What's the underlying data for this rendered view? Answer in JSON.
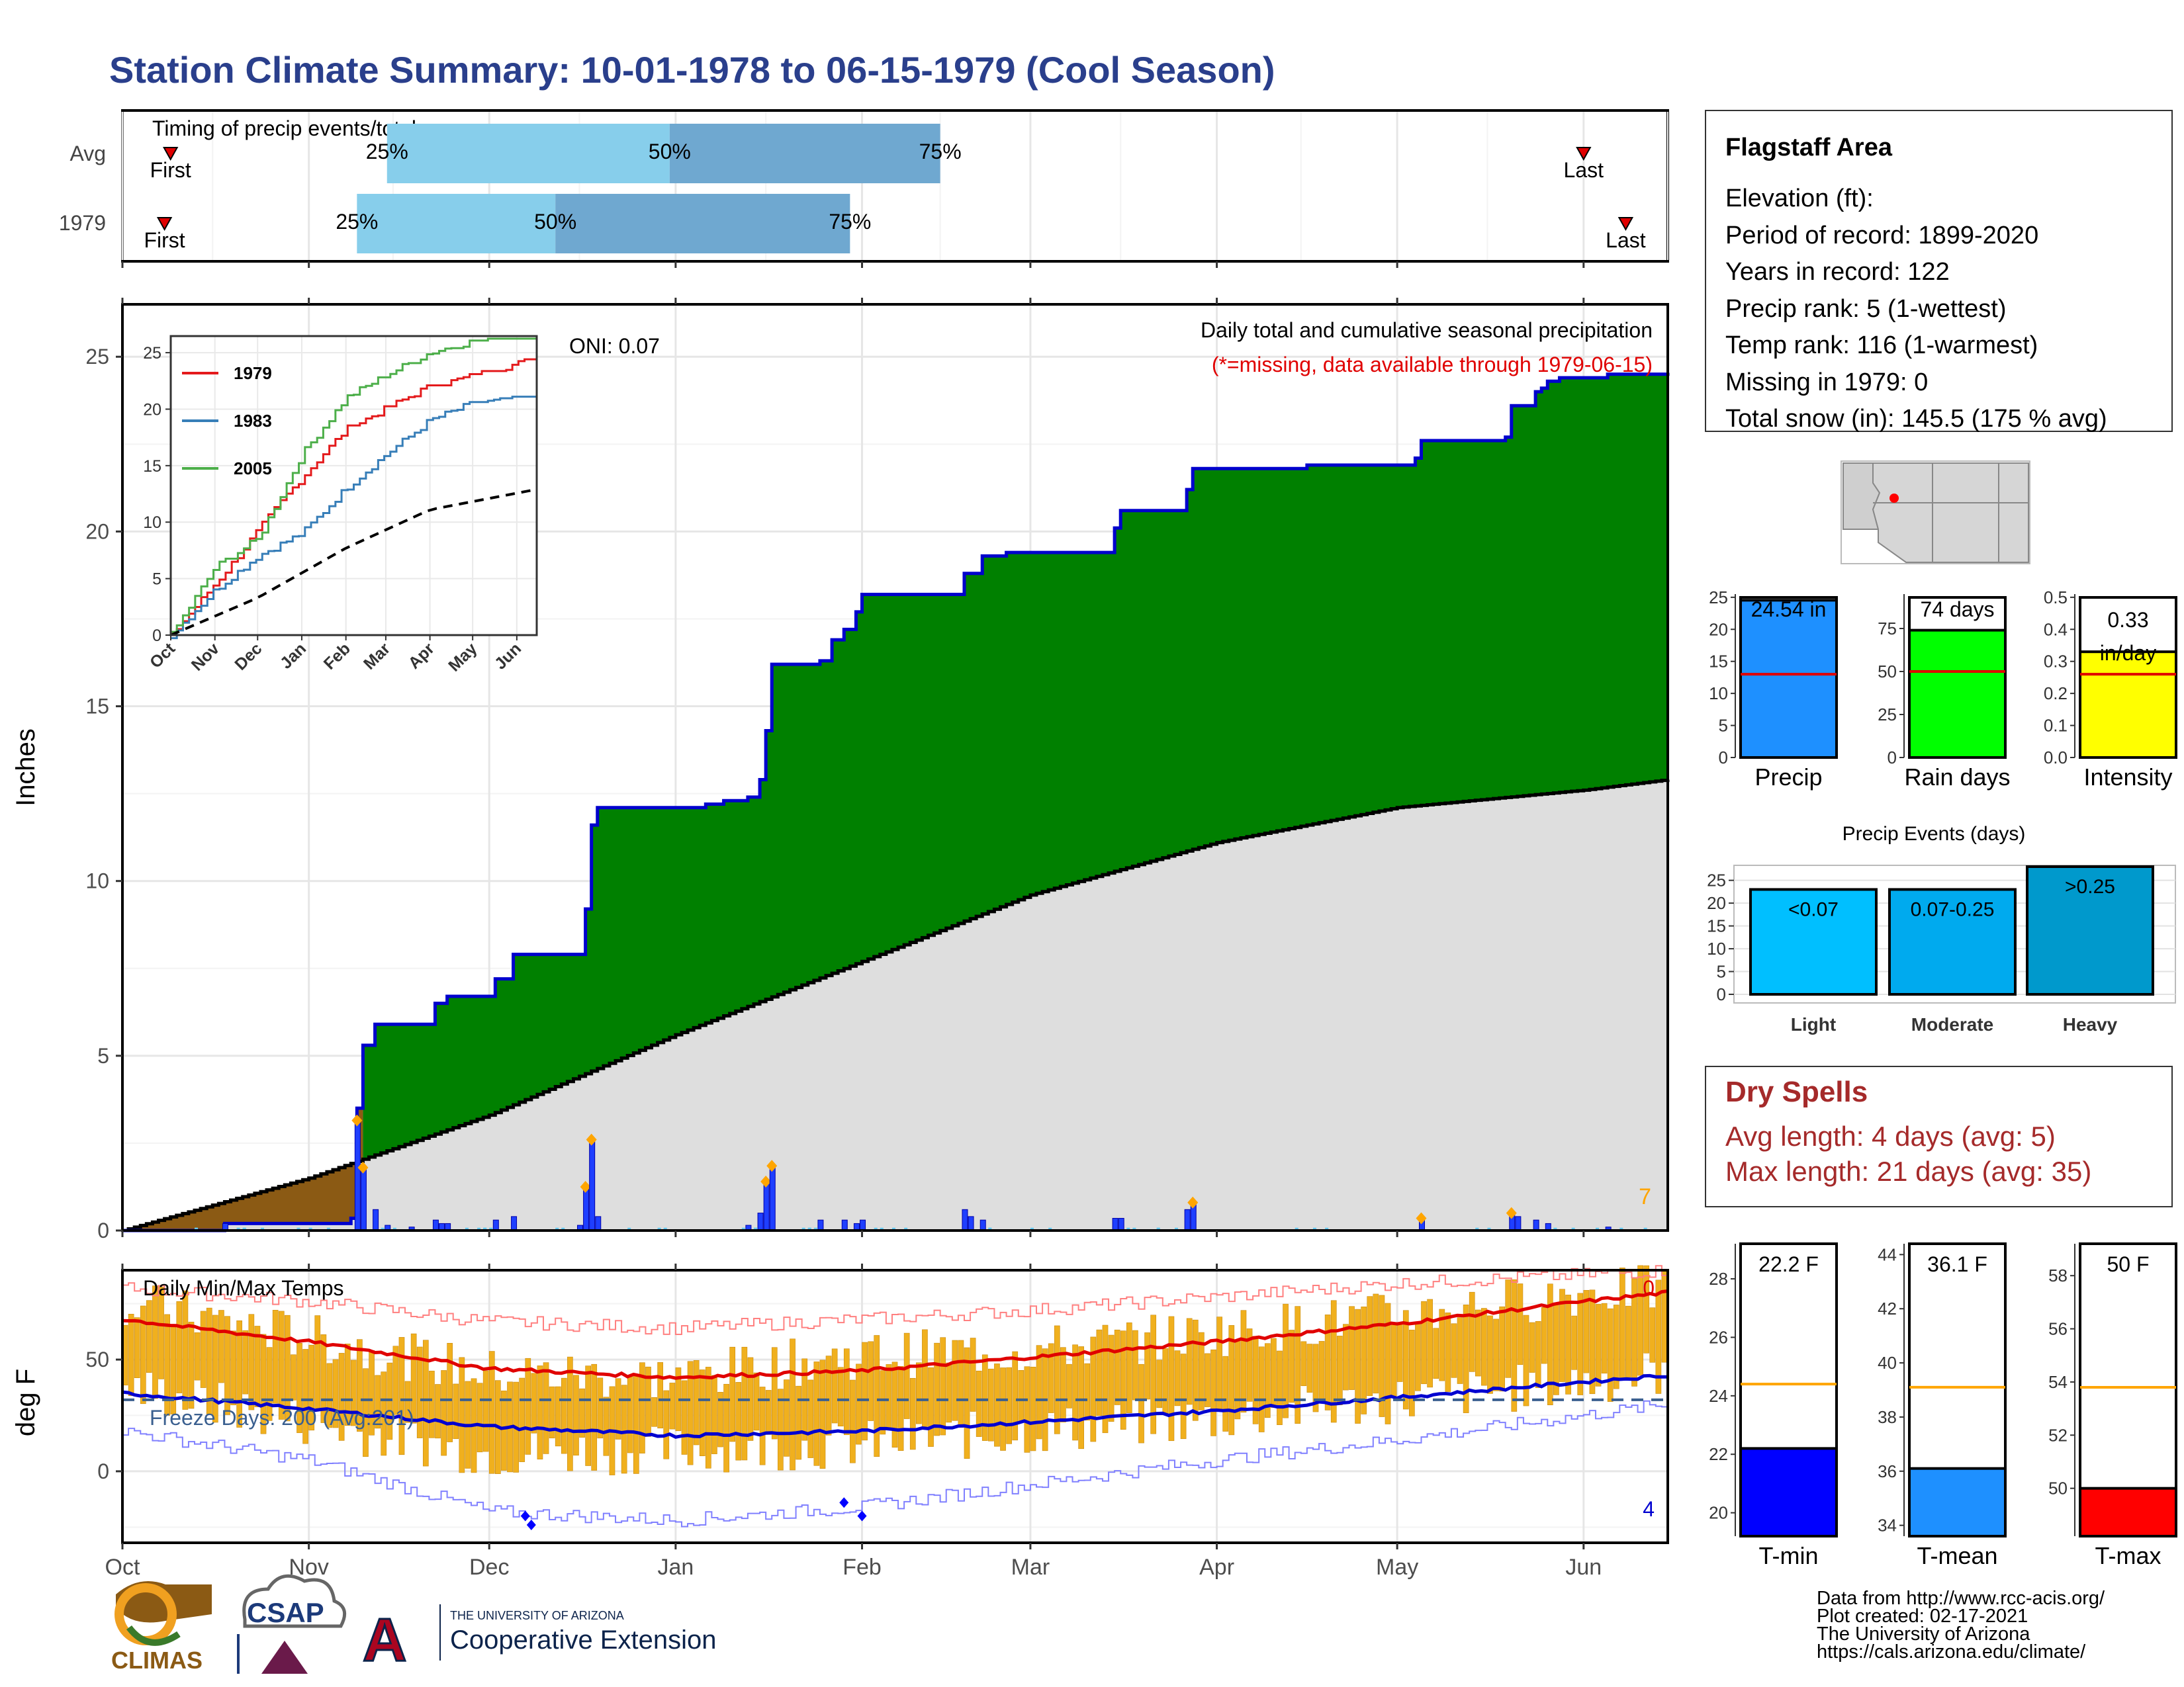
{
  "title": "Station Climate Summary: 10-01-1978 to 06-15-1979 (Cool Season)",
  "colors": {
    "title": "#2a3f8c",
    "green": "#008000",
    "cum_line": "#0000cd",
    "normal_fill": "#dedede",
    "brown": "#8b5a14",
    "bar": "#1f3fff",
    "bar_light": "#64c8f0",
    "marker": "#ffa500",
    "temp_bar": "#f0b01e",
    "tmax_line": "#e00000",
    "tmin_line": "#0000d0",
    "freeze_line": "#3a5f8f",
    "red_text": "#e00000",
    "dry_text": "#a52a2a",
    "precip_bar": "#1e90ff",
    "raindays_bar": "#00ff00",
    "intensity_bar": "#ffff00",
    "light_bar": "#00bfff",
    "moderate_bar": "#00aaee",
    "heavy_bar": "#0099cc",
    "tmin_bar": "#0000ff",
    "tmean_bar": "#1e90ff",
    "tmax_bar": "#ff0000",
    "avg_line_orange": "#ffa500",
    "pct_light": "#87ceeb",
    "pct_dark": "#6fa8d0"
  },
  "timing": {
    "label": "Timing of precip events/totals",
    "rows": [
      {
        "name": "Avg",
        "first_label": "First",
        "last_label": "Last",
        "first_date": "1978-10-09",
        "p25": "1978-11-14",
        "p50": "1978-12-31",
        "p75": "1979-02-14",
        "last_date": "1979-06-01",
        "p25_label": "25%",
        "p50_label": "50%",
        "p75_label": "75%"
      },
      {
        "name": "1979",
        "first_label": "First",
        "last_label": "Last",
        "first_date": "1978-10-08",
        "p25": "1978-11-09",
        "p50": "1978-12-12",
        "p75": "1979-01-30",
        "last_date": "1979-06-08",
        "p25_label": "25%",
        "p50_label": "50%",
        "p75_label": "75%"
      }
    ]
  },
  "precip_panel": {
    "ylabel": "Inches",
    "title_right": "Daily total and cumulative seasonal precipitation",
    "missing_note": "(*=missing, data available through 1979-06-15)",
    "oni": "ONI: 0.07",
    "corner_count": "7",
    "month_ticks": [
      "Oct",
      "Nov",
      "Dec",
      "Jan",
      "Feb",
      "Mar",
      "Apr",
      "May",
      "Jun"
    ]
  },
  "inset": {
    "legend": [
      "1979",
      "1983",
      "2005"
    ],
    "month_ticks": [
      "Oct",
      "Nov",
      "Dec",
      "Jan",
      "Feb",
      "Mar",
      "Apr",
      "May",
      "Jun"
    ]
  },
  "temp_panel": {
    "ylabel": "deg F",
    "title": "Daily Min/Max Temps",
    "freeze": "Freeze Days: 200 (Avg:201)",
    "count_top": "0",
    "count_bottom": "4"
  },
  "x_axis_months": [
    "Oct",
    "Nov",
    "Dec",
    "Jan",
    "Feb",
    "Mar",
    "Apr",
    "May",
    "Jun"
  ],
  "station": {
    "name": "Flagstaff Area",
    "lines": [
      "Elevation (ft):",
      "Period of record: 1899-2020",
      "Years in record: 122",
      "Precip rank: 5 (1-wettest)",
      "Temp rank: 116 (1-warmest)",
      "Missing in 1979: 0",
      "Total snow (in): 145.5 (175 % avg)"
    ]
  },
  "summary_bars": [
    {
      "key": "precip",
      "label": "Precip",
      "value_label": "24.54 in",
      "value": 24.54,
      "avg": 13.0,
      "ymax": 25.5,
      "ticks": [
        0,
        5,
        10,
        15,
        20,
        25
      ],
      "tick_fmt": "int"
    },
    {
      "key": "raindays",
      "label": "Rain days",
      "value_label": "74 days",
      "value": 74,
      "avg": 50,
      "ymax": 95,
      "ticks": [
        0,
        25,
        50,
        75
      ],
      "tick_fmt": "int"
    },
    {
      "key": "intensity",
      "label": "Intensity",
      "value_label": "0.33 in/day",
      "value": 0.33,
      "avg": 0.26,
      "ymax": 0.51,
      "ticks": [
        0.0,
        0.1,
        0.2,
        0.3,
        0.4,
        0.5
      ],
      "tick_fmt": "dec1"
    }
  ],
  "precip_events": {
    "title": "Precip Events (days)",
    "bars": [
      {
        "label": "Light",
        "value_label": "<0.07",
        "value": 23
      },
      {
        "label": "Moderate",
        "value_label": "0.07-0.25",
        "value": 23
      },
      {
        "label": "Heavy",
        "value_label": ">0.25",
        "value": 28
      }
    ],
    "ticks": [
      0,
      5,
      10,
      15,
      20,
      25
    ],
    "ymax": 28
  },
  "dry_spells": {
    "title": "Dry Spells",
    "avg_line": "Avg length: 4 days (avg: 5)",
    "max_line": "Max length: 21 days (avg: 35)"
  },
  "temp_bars": [
    {
      "key": "tmin",
      "label": "T-min",
      "value_label": "22.2 F",
      "value": 22.2,
      "avg": 24.4,
      "ymin": 19.2,
      "ymax": 29.2,
      "ticks": [
        20,
        22,
        24,
        26,
        28
      ]
    },
    {
      "key": "tmean",
      "label": "T-mean",
      "value_label": "36.1 F",
      "value": 36.1,
      "avg": 39.1,
      "ymin": 33.6,
      "ymax": 44.4,
      "ticks": [
        34,
        36,
        38,
        40,
        42,
        44
      ]
    },
    {
      "key": "tmax",
      "label": "T-max",
      "value_label": "50 F",
      "value": 50,
      "avg": 53.8,
      "ymin": 48.2,
      "ymax": 59.2,
      "ticks": [
        50,
        52,
        54,
        56,
        58
      ]
    }
  ],
  "credits": [
    "Data from http://www.rcc-acis.org/",
    "Plot created: 02-17-2021",
    "The University of Arizona",
    "https://cals.arizona.edu/climate/"
  ],
  "logos": {
    "climas": "CLIMAS",
    "csap": "CSAP",
    "ua_small": "THE UNIVERSITY OF ARIZONA",
    "ua_big": "Cooperative Extension"
  },
  "chart_data": {
    "type": "area",
    "title": "Daily total and cumulative seasonal precipitation",
    "ylabel": "Inches",
    "ylim": [
      0,
      26.5
    ],
    "x_range": [
      "1978-10-01",
      "1979-06-15"
    ],
    "series": [
      {
        "name": "1979",
        "cumulative": [
          [
            "1978-10-01",
            0
          ],
          [
            "1978-10-17",
            0
          ],
          [
            "1978-10-18",
            0.2
          ],
          [
            "1978-11-08",
            0.35
          ],
          [
            "1978-11-09",
            3.5
          ],
          [
            "1978-11-10",
            5.3
          ],
          [
            "1978-11-12",
            5.9
          ],
          [
            "1978-11-21",
            5.9
          ],
          [
            "1978-11-22",
            6.5
          ],
          [
            "1978-11-24",
            6.7
          ],
          [
            "1978-12-01",
            6.7
          ],
          [
            "1978-12-02",
            7.2
          ],
          [
            "1978-12-05",
            7.9
          ],
          [
            "1978-12-16",
            7.9
          ],
          [
            "1978-12-17",
            9.2
          ],
          [
            "1978-12-18",
            11.6
          ],
          [
            "1978-12-19",
            12.1
          ],
          [
            "1979-01-01",
            12.1
          ],
          [
            "1979-01-06",
            12.2
          ],
          [
            "1979-01-09",
            12.3
          ],
          [
            "1979-01-13",
            12.4
          ],
          [
            "1979-01-15",
            12.9
          ],
          [
            "1979-01-16",
            14.3
          ],
          [
            "1979-01-17",
            16.2
          ],
          [
            "1979-01-25",
            16.3
          ],
          [
            "1979-01-27",
            16.9
          ],
          [
            "1979-01-29",
            17.2
          ],
          [
            "1979-01-31",
            17.7
          ],
          [
            "1979-02-01",
            18.2
          ],
          [
            "1979-02-17",
            18.2
          ],
          [
            "1979-02-18",
            18.8
          ],
          [
            "1979-02-21",
            19.3
          ],
          [
            "1979-02-25",
            19.4
          ],
          [
            "1979-03-12",
            19.4
          ],
          [
            "1979-03-15",
            20.1
          ],
          [
            "1979-03-16",
            20.6
          ],
          [
            "1979-03-27",
            21.2
          ],
          [
            "1979-03-28",
            21.8
          ],
          [
            "1979-04-15",
            21.8
          ],
          [
            "1979-04-16",
            21.9
          ],
          [
            "1979-05-04",
            22.1
          ],
          [
            "1979-05-05",
            22.6
          ],
          [
            "1979-05-19",
            22.7
          ],
          [
            "1979-05-20",
            23.6
          ],
          [
            "1979-05-24",
            24.0
          ],
          [
            "1979-05-25",
            24.1
          ],
          [
            "1979-05-26",
            24.3
          ],
          [
            "1979-05-28",
            24.4
          ],
          [
            "1979-06-04",
            24.4
          ],
          [
            "1979-06-05",
            24.5
          ],
          [
            "1979-06-15",
            24.54
          ]
        ]
      },
      {
        "name": "normal",
        "cumulative": [
          [
            "1978-10-01",
            0
          ],
          [
            "1978-11-01",
            1.5
          ],
          [
            "1978-12-01",
            3.3
          ],
          [
            "1979-01-01",
            5.6
          ],
          [
            "1979-02-01",
            7.7
          ],
          [
            "1979-03-01",
            9.6
          ],
          [
            "1979-04-01",
            11.1
          ],
          [
            "1979-05-01",
            12.1
          ],
          [
            "1979-06-01",
            12.6
          ],
          [
            "1979-06-15",
            12.9
          ]
        ]
      }
    ],
    "daily_bars": [
      [
        "1978-10-18",
        0.2
      ],
      [
        "1978-11-09",
        3.15
      ],
      [
        "1978-11-10",
        1.8
      ],
      [
        "1978-11-12",
        0.6
      ],
      [
        "1978-11-14",
        0.15
      ],
      [
        "1978-11-18",
        0.1
      ],
      [
        "1978-11-22",
        0.3
      ],
      [
        "1978-11-23",
        0.2
      ],
      [
        "1978-11-24",
        0.2
      ],
      [
        "1978-12-02",
        0.3
      ],
      [
        "1978-12-05",
        0.4
      ],
      [
        "1978-12-16",
        0.15
      ],
      [
        "1978-12-17",
        1.25
      ],
      [
        "1978-12-18",
        2.6
      ],
      [
        "1978-12-19",
        0.4
      ],
      [
        "1979-01-13",
        0.15
      ],
      [
        "1979-01-15",
        0.5
      ],
      [
        "1979-01-16",
        1.4
      ],
      [
        "1979-01-17",
        1.85
      ],
      [
        "1979-01-25",
        0.3
      ],
      [
        "1979-01-29",
        0.3
      ],
      [
        "1979-01-31",
        0.2
      ],
      [
        "1979-02-01",
        0.3
      ],
      [
        "1979-02-18",
        0.6
      ],
      [
        "1979-02-19",
        0.4
      ],
      [
        "1979-02-21",
        0.3
      ],
      [
        "1979-03-15",
        0.35
      ],
      [
        "1979-03-16",
        0.35
      ],
      [
        "1979-03-27",
        0.6
      ],
      [
        "1979-03-28",
        0.8
      ],
      [
        "1979-05-05",
        0.35
      ],
      [
        "1979-05-20",
        0.5
      ],
      [
        "1979-05-21",
        0.4
      ],
      [
        "1979-05-24",
        0.3
      ],
      [
        "1979-05-26",
        0.2
      ],
      [
        "1979-06-05",
        0.1
      ]
    ],
    "inset": {
      "type": "line",
      "ylim": [
        0,
        26
      ],
      "series": [
        {
          "name": "1979",
          "points": [
            [
              "1978-10-01",
              0
            ],
            [
              "1978-11-10",
              5.9
            ],
            [
              "1978-12-19",
              12.1
            ],
            [
              "1979-01-17",
              16.2
            ],
            [
              "1979-02-01",
              18.2
            ],
            [
              "1979-03-28",
              21.8
            ],
            [
              "1979-05-20",
              23.6
            ],
            [
              "1979-06-15",
              24.5
            ]
          ]
        },
        {
          "name": "1983",
          "points": [
            [
              "1978-10-01",
              0
            ],
            [
              "1978-11-01",
              4
            ],
            [
              "1978-12-01",
              7
            ],
            [
              "1979-01-01",
              9
            ],
            [
              "1979-02-01",
              13
            ],
            [
              "1979-03-01",
              16
            ],
            [
              "1979-04-01",
              19
            ],
            [
              "1979-05-01",
              20.5
            ],
            [
              "1979-06-15",
              21
            ]
          ]
        },
        {
          "name": "2005",
          "points": [
            [
              "1978-10-01",
              0
            ],
            [
              "1978-11-01",
              6
            ],
            [
              "1978-12-01",
              8.5
            ],
            [
              "1979-01-01",
              16
            ],
            [
              "1979-02-01",
              21
            ],
            [
              "1979-03-01",
              23
            ],
            [
              "1979-04-01",
              25
            ],
            [
              "1979-05-01",
              26
            ],
            [
              "1979-06-15",
              26
            ]
          ]
        },
        {
          "name": "normal",
          "points": [
            [
              "1978-10-01",
              0
            ],
            [
              "1978-12-01",
              3.3
            ],
            [
              "1979-02-01",
              7.7
            ],
            [
              "1979-04-01",
              11.1
            ],
            [
              "1979-06-15",
              12.9
            ]
          ]
        }
      ]
    },
    "temps": {
      "ylim": [
        -32,
        90
      ],
      "yticks": [
        0,
        50
      ],
      "freeze_line": 32,
      "tmax_avg": [
        [
          "1978-10-01",
          68
        ],
        [
          "1978-11-01",
          58
        ],
        [
          "1978-12-01",
          46
        ],
        [
          "1979-01-01",
          42
        ],
        [
          "1979-02-01",
          45
        ],
        [
          "1979-03-01",
          51
        ],
        [
          "1979-04-01",
          58
        ],
        [
          "1979-05-01",
          66
        ],
        [
          "1979-06-01",
          76
        ],
        [
          "1979-06-15",
          80
        ]
      ],
      "tmin_avg": [
        [
          "1978-10-01",
          35
        ],
        [
          "1978-11-01",
          28
        ],
        [
          "1978-12-01",
          20
        ],
        [
          "1979-01-01",
          16
        ],
        [
          "1979-02-01",
          18
        ],
        [
          "1979-03-01",
          22
        ],
        [
          "1979-04-01",
          27
        ],
        [
          "1979-05-01",
          33
        ],
        [
          "1979-06-01",
          40
        ],
        [
          "1979-06-15",
          43
        ]
      ],
      "record_high": [
        [
          "1978-10-01",
          82
        ],
        [
          "1978-11-01",
          76
        ],
        [
          "1978-12-01",
          67
        ],
        [
          "1979-01-01",
          64
        ],
        [
          "1979-02-01",
          68
        ],
        [
          "1979-03-01",
          72
        ],
        [
          "1979-04-01",
          78
        ],
        [
          "1979-05-01",
          84
        ],
        [
          "1979-06-01",
          88
        ],
        [
          "1979-06-15",
          90
        ]
      ],
      "record_low": [
        [
          "1978-10-01",
          18
        ],
        [
          "1978-11-01",
          5
        ],
        [
          "1978-12-01",
          -18
        ],
        [
          "1979-01-01",
          -22
        ],
        [
          "1979-02-01",
          -16
        ],
        [
          "1979-03-01",
          -6
        ],
        [
          "1979-04-01",
          5
        ],
        [
          "1979-05-01",
          14
        ],
        [
          "1979-06-01",
          25
        ],
        [
          "1979-06-15",
          30
        ]
      ],
      "obs_high": [
        [
          "1978-10-01",
          76
        ],
        [
          "1978-11-01",
          60
        ],
        [
          "1978-12-01",
          44
        ],
        [
          "1979-01-01",
          42
        ],
        [
          "1979-02-01",
          52
        ],
        [
          "1979-03-01",
          54
        ],
        [
          "1979-04-01",
          62
        ],
        [
          "1979-05-01",
          70
        ],
        [
          "1979-06-01",
          80
        ],
        [
          "1979-06-15",
          82
        ]
      ],
      "obs_low": [
        [
          "1978-10-01",
          38
        ],
        [
          "1978-11-01",
          22
        ],
        [
          "1978-12-01",
          8
        ],
        [
          "1979-01-01",
          10
        ],
        [
          "1979-02-01",
          12
        ],
        [
          "1979-03-01",
          18
        ],
        [
          "1979-04-01",
          24
        ],
        [
          "1979-05-01",
          32
        ],
        [
          "1979-06-01",
          40
        ],
        [
          "1979-06-15",
          45
        ]
      ]
    }
  }
}
